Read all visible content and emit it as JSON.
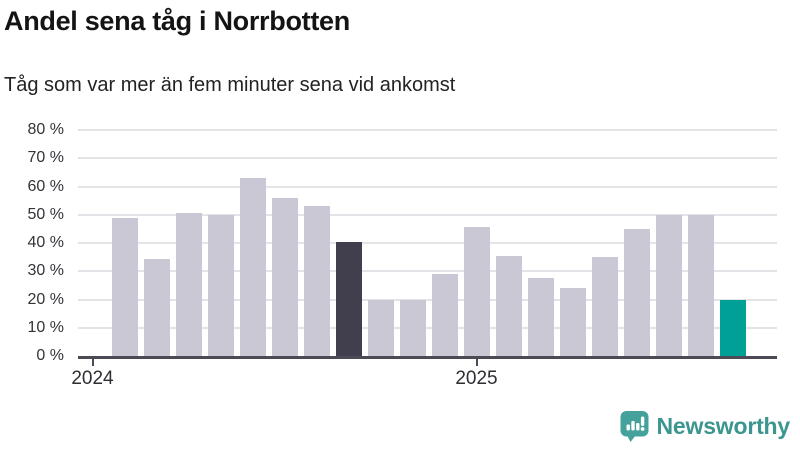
{
  "title": "Andel sena tåg i Norrbotten",
  "subtitle": "Tåg som var mer än fem minuter sena vid ankomst",
  "colors": {
    "bar_default": "#cac8d4",
    "bar_highlight_dark": "#413f4e",
    "bar_highlight_teal": "#00a096",
    "gridline": "#e4e4e8",
    "axis": "#4c4b55",
    "logo_teal": "#3b968f"
  },
  "chart_data": {
    "type": "bar",
    "x": [
      "2024-02",
      "2024-03",
      "2024-04",
      "2024-05",
      "2024-06",
      "2024-07",
      "2024-08",
      "2024-09",
      "2024-10",
      "2024-11",
      "2024-12",
      "2025-01",
      "2025-02",
      "2025-03",
      "2025-04",
      "2025-05",
      "2025-06",
      "2025-07",
      "2025-08",
      "2025-09"
    ],
    "values": [
      49,
      34.5,
      50.5,
      50,
      63,
      56,
      53,
      40.5,
      20,
      20,
      29,
      45.5,
      35.5,
      27.5,
      24,
      35,
      45,
      50,
      50,
      20
    ],
    "highlight_dark": "2024-09",
    "highlight_teal": "2025-09",
    "title": "Andel sena tåg i Norrbotten",
    "subtitle": "Tåg som var mer än fem minuter sena vid ankomst",
    "ylabel": "",
    "xlabel": "",
    "ylim": [
      0,
      80
    ],
    "ytick_step": 10,
    "yticks": [
      "0 %",
      "10 %",
      "20 %",
      "30 %",
      "40 %",
      "50 %",
      "60 %",
      "70 %",
      "80 %"
    ],
    "xticks": [
      {
        "label": "2024",
        "bar_index": -1
      },
      {
        "label": "2025",
        "bar_index": 11
      }
    ],
    "grid": true,
    "legend": false
  },
  "footer": {
    "logo_text": "Newsworthy",
    "logo_icon": "newsworthy-speech-bubble-bars-icon"
  }
}
